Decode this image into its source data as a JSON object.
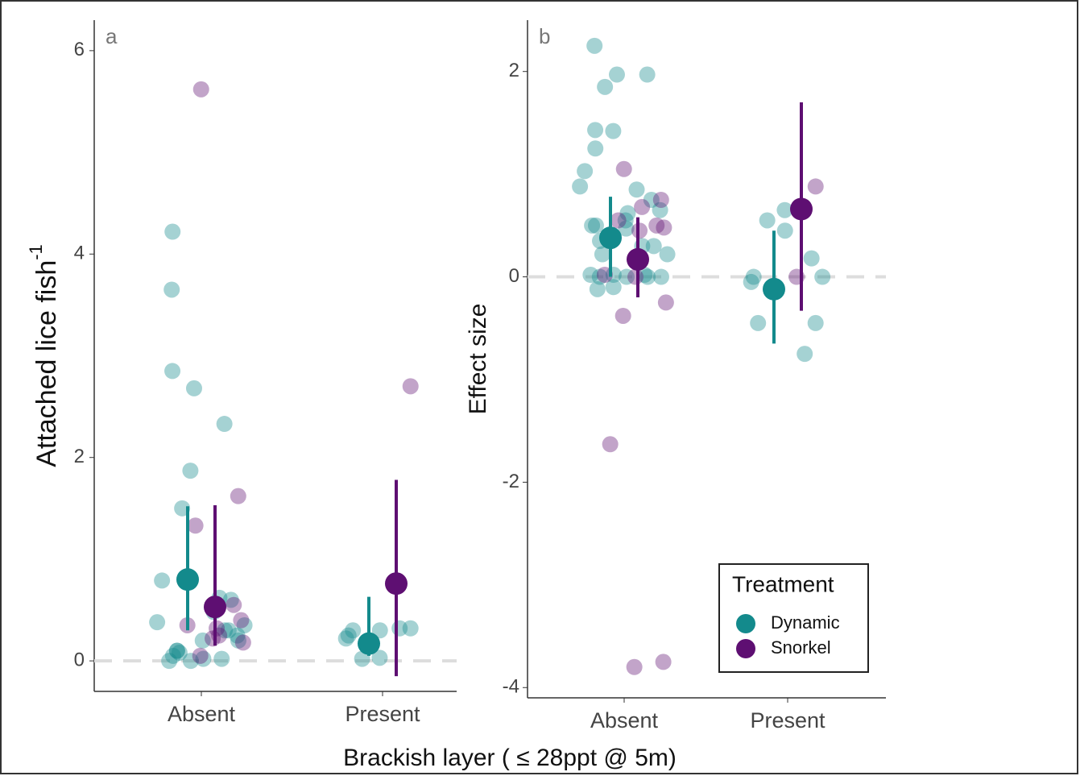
{
  "shared_x_label": "Brackish layer ( ≤ 28ppt @ 5m)",
  "chart_data": [
    {
      "type": "dot",
      "panel_label": "a",
      "y_label": "Attached lice fish",
      "y_label_sup": "-1",
      "categories": [
        "Absent",
        "Present"
      ],
      "ylim": [
        -0.3,
        6.3
      ],
      "yticks": [
        0,
        2,
        4,
        6
      ],
      "reference_line": 0,
      "series": [
        {
          "name": "Dynamic",
          "color": "#138a8c",
          "values": [
            [
              3.65,
              2.33,
              2.68,
              1.5,
              4.22,
              2.85,
              1.87,
              0.79,
              0.48,
              0.38,
              0.3,
              0.25,
              0.2,
              0.05,
              0,
              0.02,
              0.1,
              0.6,
              0.62,
              0.35,
              0.08,
              0,
              0.02,
              0.1,
              0.2,
              0.3
            ],
            [
              0.3,
              0.25,
              0.22,
              0.32,
              0.32,
              0.3,
              0.03,
              0.02
            ]
          ],
          "means": [
            0.8,
            0.17
          ],
          "lower": [
            0.3,
            0.05
          ],
          "upper": [
            1.52,
            0.63
          ]
        },
        {
          "name": "Snorkel",
          "color": "#5e0f72",
          "values": [
            [
              5.62,
              1.62,
              1.33,
              0.55,
              0.4,
              0.32,
              0.25,
              0.22,
              0.18,
              0.05,
              0.35
            ],
            [
              2.7
            ]
          ],
          "means": [
            0.53,
            0.76
          ],
          "lower": [
            0.15,
            -0.15
          ],
          "upper": [
            1.53,
            1.78
          ]
        }
      ]
    },
    {
      "type": "dot",
      "panel_label": "b",
      "y_label": "Effect size",
      "categories": [
        "Absent",
        "Present"
      ],
      "ylim": [
        -4.1,
        2.5
      ],
      "yticks": [
        -4,
        -2,
        0,
        2
      ],
      "reference_line": 0,
      "legend_title": "Treatment",
      "legend": "bottom-right",
      "series": [
        {
          "name": "Dynamic",
          "color": "#138a8c",
          "values": [
            [
              2.25,
              1.97,
              1.97,
              1.85,
              1.25,
              1.43,
              1.42,
              1.03,
              0.85,
              0.88,
              0.75,
              0.65,
              0.55,
              0.5,
              0.5,
              0.47,
              0.35,
              0.3,
              0.3,
              0.22,
              0.22,
              0.02,
              0.02,
              0,
              0,
              0,
              0,
              -0.12,
              -0.1,
              0.02,
              0.62
            ],
            [
              0.45,
              0,
              -0.05,
              -0.75,
              -0.45,
              -0.45,
              0.65,
              0.55,
              0.18,
              0
            ]
          ],
          "means": [
            0.38,
            -0.12
          ],
          "lower": [
            0,
            -0.65
          ],
          "upper": [
            0.78,
            0.45
          ]
        },
        {
          "name": "Snorkel",
          "color": "#5e0f72",
          "values": [
            [
              1.05,
              0.75,
              0.55,
              0.5,
              0.48,
              0.45,
              0.68,
              0,
              -0.25,
              -0.38,
              -1.63,
              -3.75,
              -3.8,
              0.02
            ],
            [
              0.88,
              0
            ]
          ],
          "means": [
            0.17,
            0.66
          ],
          "lower": [
            -0.2,
            -0.33
          ],
          "upper": [
            0.58,
            1.7
          ]
        }
      ]
    }
  ]
}
